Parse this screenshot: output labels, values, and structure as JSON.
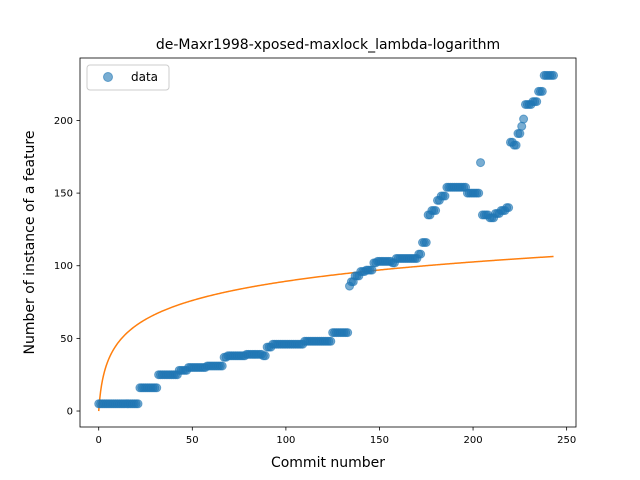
{
  "chart_data": {
    "type": "scatter",
    "title": "de-Maxr1998-xposed-maxlock_lambda-logarithm",
    "xlabel": "Commit number",
    "ylabel": "Number of instance of a feature",
    "xlim": [
      -10,
      255
    ],
    "ylim": [
      -11,
      243
    ],
    "xticks": [
      "0",
      "50",
      "100",
      "150",
      "200",
      "250"
    ],
    "yticks": [
      "0",
      "50",
      "100",
      "150",
      "200"
    ],
    "grid": false,
    "legend": {
      "placement": "top-left",
      "entries": [
        "data"
      ]
    },
    "colors": {
      "scatter": "#1f77b4",
      "fit": "#ff7f0e"
    },
    "series": [
      {
        "name": "data",
        "kind": "scatter",
        "runs": [
          [
            0,
            0,
            5
          ],
          [
            1,
            21,
            5
          ],
          [
            22,
            31,
            16
          ],
          [
            32,
            42,
            25
          ],
          [
            43,
            47,
            28
          ],
          [
            48,
            57,
            30
          ],
          [
            58,
            66,
            31
          ],
          [
            67,
            68,
            37
          ],
          [
            69,
            78,
            38
          ],
          [
            79,
            87,
            39
          ],
          [
            88,
            89,
            38
          ],
          [
            90,
            92,
            44
          ],
          [
            93,
            109,
            46
          ],
          [
            110,
            124,
            48
          ],
          [
            125,
            133,
            54
          ],
          [
            134,
            134,
            86
          ],
          [
            135,
            136,
            89
          ],
          [
            137,
            139,
            93
          ],
          [
            140,
            142,
            96
          ],
          [
            143,
            146,
            97
          ],
          [
            147,
            148,
            102
          ],
          [
            149,
            156,
            103
          ],
          [
            157,
            158,
            102
          ],
          [
            159,
            166,
            105
          ],
          [
            167,
            170,
            105
          ],
          [
            171,
            172,
            108
          ],
          [
            173,
            175,
            116
          ],
          [
            176,
            177,
            135
          ],
          [
            178,
            180,
            138
          ],
          [
            181,
            182,
            145
          ],
          [
            183,
            185,
            148
          ],
          [
            186,
            196,
            154
          ],
          [
            197,
            203,
            150
          ],
          [
            204,
            204,
            171
          ],
          [
            205,
            208,
            135
          ],
          [
            209,
            211,
            133
          ],
          [
            212,
            214,
            136
          ],
          [
            215,
            217,
            138
          ],
          [
            218,
            219,
            140
          ],
          [
            220,
            221,
            185
          ],
          [
            222,
            223,
            183
          ],
          [
            224,
            225,
            191
          ],
          [
            226,
            226,
            196
          ],
          [
            227,
            227,
            201
          ],
          [
            228,
            231,
            211
          ],
          [
            232,
            234,
            213
          ],
          [
            235,
            237,
            220
          ],
          [
            238,
            243,
            231
          ]
        ]
      },
      {
        "name": "",
        "kind": "line",
        "formula": "y = 19.35 * ln(x + 1)",
        "x_range": [
          0,
          243
        ],
        "samples": [
          [
            0,
            0
          ],
          [
            5,
            34.7
          ],
          [
            20,
            58.9
          ],
          [
            50,
            76.1
          ],
          [
            100,
            89.3
          ],
          [
            150,
            97.1
          ],
          [
            200,
            102.6
          ],
          [
            243,
            106.3
          ]
        ]
      }
    ]
  }
}
